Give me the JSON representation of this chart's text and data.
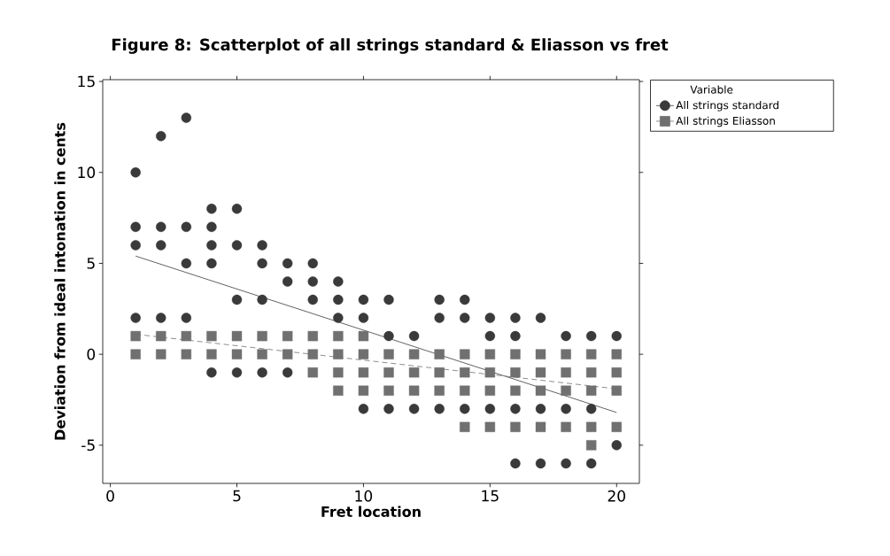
{
  "chart_data": {
    "type": "scatter",
    "title": "Figure 8: Scatterplot of all strings standard & Eliasson vs fret",
    "xlabel": "Fret location",
    "ylabel": "Deviation from ideal intonation in cents",
    "legend_title": "Variable",
    "legend": "top right",
    "grid": false,
    "xlim": [
      -0.3,
      20.9
    ],
    "ylim": [
      -7.1,
      15.1
    ],
    "xticks": [
      0,
      5,
      10,
      15,
      20
    ],
    "yticks": [
      -5,
      0,
      5,
      10,
      15
    ],
    "series": [
      {
        "name": "All strings standard",
        "marker": "circle",
        "color": "#3a3a3a",
        "x": [
          1,
          1,
          1,
          1,
          2,
          2,
          2,
          2,
          3,
          3,
          3,
          3,
          4,
          4,
          4,
          4,
          4,
          5,
          5,
          5,
          5,
          6,
          6,
          6,
          6,
          7,
          7,
          7,
          8,
          8,
          8,
          9,
          9,
          9,
          10,
          10,
          10,
          11,
          11,
          11,
          12,
          12,
          13,
          13,
          13,
          14,
          14,
          14,
          15,
          15,
          15,
          16,
          16,
          16,
          16,
          17,
          17,
          17,
          18,
          18,
          18,
          19,
          19,
          19,
          20,
          20
        ],
        "values": [
          10,
          7,
          6,
          2,
          12,
          7,
          6,
          2,
          13,
          7,
          5,
          2,
          8,
          7,
          6,
          5,
          -1,
          8,
          6,
          3,
          -1,
          6,
          5,
          3,
          -1,
          5,
          4,
          -1,
          5,
          4,
          3,
          4,
          3,
          2,
          3,
          2,
          -3,
          3,
          1,
          -3,
          1,
          -3,
          3,
          2,
          -3,
          3,
          2,
          -3,
          2,
          1,
          -3,
          2,
          1,
          -3,
          -6,
          2,
          -3,
          -6,
          1,
          -3,
          -6,
          1,
          -3,
          -6,
          1,
          -5
        ]
      },
      {
        "name": "All strings Eliasson",
        "marker": "square",
        "color": "#707070",
        "x": [
          1,
          1,
          2,
          2,
          3,
          3,
          4,
          4,
          5,
          5,
          6,
          6,
          7,
          7,
          8,
          8,
          8,
          9,
          9,
          9,
          9,
          10,
          10,
          10,
          10,
          11,
          11,
          11,
          12,
          12,
          12,
          13,
          13,
          13,
          14,
          14,
          14,
          14,
          15,
          15,
          15,
          15,
          16,
          16,
          16,
          16,
          17,
          17,
          17,
          17,
          18,
          18,
          18,
          18,
          19,
          19,
          19,
          19,
          19,
          20,
          20,
          20,
          20
        ],
        "values": [
          1,
          0,
          1,
          0,
          1,
          0,
          1,
          0,
          1,
          0,
          1,
          0,
          1,
          0,
          1,
          0,
          -1,
          1,
          0,
          -1,
          -2,
          1,
          0,
          -1,
          -2,
          0,
          -1,
          -2,
          0,
          -1,
          -2,
          0,
          -1,
          -2,
          0,
          -1,
          -2,
          -4,
          0,
          -1,
          -2,
          -4,
          0,
          -1,
          -2,
          -4,
          0,
          -1,
          -2,
          -4,
          0,
          -1,
          -2,
          -4,
          0,
          -1,
          -2,
          -4,
          -5,
          0,
          -1,
          -2,
          -4
        ]
      },
      {
        "type": "line",
        "line_style": "solid",
        "color": "#3a3a3a",
        "x": [
          1,
          20
        ],
        "values": [
          5.4,
          -3.2
        ]
      },
      {
        "type": "line",
        "line_style": "dashed",
        "color": "#707070",
        "x": [
          1,
          20
        ],
        "values": [
          1.1,
          -1.9
        ]
      }
    ]
  }
}
